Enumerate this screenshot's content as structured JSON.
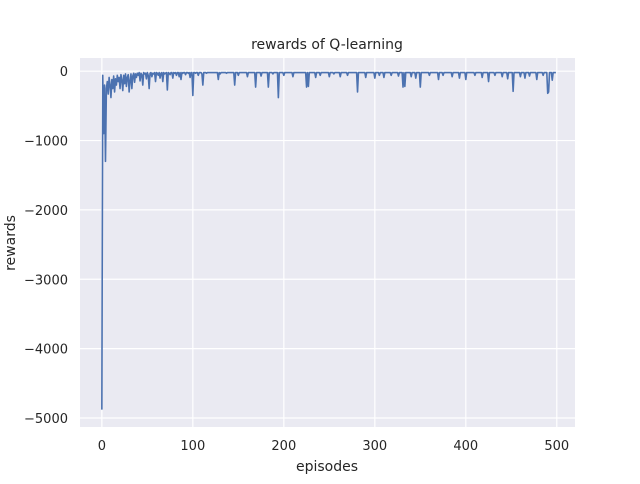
{
  "chart_data": {
    "type": "line",
    "title": "rewards of Q-learning",
    "xlabel": "episodes",
    "ylabel": "rewards",
    "xlim": [
      -24,
      520
    ],
    "ylim": [
      -5130,
      190
    ],
    "xticks": [
      0,
      100,
      200,
      300,
      400,
      500
    ],
    "yticks": [
      0,
      -1000,
      -2000,
      -3000,
      -4000,
      -5000
    ],
    "xtick_labels": [
      "0",
      "100",
      "200",
      "300",
      "400",
      "500"
    ],
    "ytick_labels": [
      "0",
      "−1000",
      "−2000",
      "−3000",
      "−4000",
      "−5000"
    ],
    "grid": true,
    "style": {
      "background": "#eaeaf2",
      "grid_color": "#ffffff",
      "line_color": "#4c72b0"
    },
    "series": [
      {
        "values": [
          -4880,
          -60,
          -900,
          -200,
          -1300,
          -250,
          -150,
          -330,
          -90,
          -200,
          -380,
          -120,
          -250,
          -70,
          -300,
          -110,
          -200,
          -60,
          -150,
          -90,
          -250,
          -50,
          -130,
          -280,
          -60,
          -180,
          -40,
          -220,
          -90,
          -50,
          -300,
          -140,
          -40,
          -250,
          -70,
          -30,
          -160,
          -40,
          -90,
          -30,
          -60,
          -20,
          -140,
          -30,
          -50,
          -200,
          -20,
          -40,
          -30,
          -110,
          -20,
          -60,
          -250,
          -30,
          -20,
          -80,
          -30,
          -40,
          -20,
          -150,
          -20,
          -30,
          -60,
          -20,
          -100,
          -30,
          -20,
          -150,
          -20,
          -40,
          -30,
          -20,
          -270,
          -20,
          -30,
          -50,
          -20,
          -20,
          -100,
          -20,
          -30,
          -20,
          -60,
          -20,
          -20,
          -80,
          -20,
          -120,
          -20,
          -30,
          -20,
          -20,
          -50,
          -20,
          -20,
          -30,
          -20,
          -90,
          -20,
          -20,
          -350,
          -20,
          -20,
          -30,
          -20,
          -20,
          -60,
          -20,
          -20,
          -20,
          -40,
          -200,
          -20,
          -20,
          -20,
          -30,
          -20,
          -20,
          -20,
          -20,
          -20,
          -20,
          -20,
          -20,
          -20,
          -20,
          -20,
          -20,
          -120,
          -20,
          -40,
          -20,
          -20,
          -20,
          -20,
          -20,
          -20,
          -30,
          -20,
          -20,
          -20,
          -20,
          -20,
          -20,
          -20,
          -20,
          -200,
          -20,
          -20,
          -20,
          -60,
          -20,
          -20,
          -20,
          -20,
          -20,
          -20,
          -20,
          -20,
          -20,
          -80,
          -20,
          -20,
          -20,
          -20,
          -20,
          -20,
          -20,
          -20,
          -230,
          -20,
          -20,
          -20,
          -20,
          -20,
          -70,
          -20,
          -20,
          -20,
          -20,
          -20,
          -20,
          -20,
          -230,
          -20,
          -20,
          -20,
          -20,
          -40,
          -20,
          -20,
          -20,
          -20,
          -20,
          -380,
          -20,
          -20,
          -20,
          -20,
          -20,
          -60,
          -20,
          -20,
          -20,
          -20,
          -20,
          -20,
          -20,
          -20,
          -20,
          -80,
          -20,
          -20,
          -20,
          -20,
          -20,
          -20,
          -20,
          -20,
          -20,
          -20,
          -20,
          -20,
          -20,
          -20,
          -230,
          -20,
          -220,
          -20,
          -20,
          -20,
          -20,
          -20,
          -20,
          -20,
          -90,
          -20,
          -20,
          -20,
          -20,
          -60,
          -20,
          -20,
          -20,
          -20,
          -20,
          -20,
          -20,
          -20,
          -20,
          -80,
          -20,
          -20,
          -20,
          -20,
          -40,
          -20,
          -20,
          -20,
          -20,
          -20,
          -20,
          -80,
          -20,
          -20,
          -20,
          -20,
          -20,
          -20,
          -20,
          -60,
          -20,
          -20,
          -20,
          -20,
          -20,
          -20,
          -20,
          -20,
          -20,
          -20,
          -300,
          -20,
          -20,
          -20,
          -20,
          -20,
          -20,
          -20,
          -20,
          -90,
          -20,
          -20,
          -20,
          -20,
          -20,
          -20,
          -20,
          -20,
          -20,
          -100,
          -20,
          -20,
          -20,
          -20,
          -60,
          -20,
          -20,
          -20,
          -20,
          -90,
          -20,
          -20,
          -20,
          -20,
          -20,
          -20,
          -20,
          -60,
          -20,
          -20,
          -20,
          -20,
          -20,
          -20,
          -20,
          -70,
          -20,
          -20,
          -20,
          -20,
          -230,
          -20,
          -220,
          -20,
          -20,
          -20,
          -20,
          -20,
          -20,
          -80,
          -20,
          -20,
          -20,
          -20,
          -100,
          -20,
          -20,
          -20,
          -20,
          -230,
          -20,
          -20,
          -20,
          -20,
          -20,
          -20,
          -20,
          -20,
          -20,
          -60,
          -20,
          -20,
          -20,
          -20,
          -20,
          -20,
          -20,
          -20,
          -20,
          -120,
          -20,
          -20,
          -20,
          -20,
          -60,
          -20,
          -20,
          -20,
          -20,
          -20,
          -20,
          -20,
          -20,
          -20,
          -80,
          -20,
          -20,
          -20,
          -20,
          -20,
          -20,
          -20,
          -100,
          -20,
          -20,
          -20,
          -20,
          -20,
          -20,
          -120,
          -20,
          -20,
          -20,
          -20,
          -20,
          -20,
          -20,
          -20,
          -20,
          -60,
          -20,
          -20,
          -20,
          -20,
          -20,
          -20,
          -20,
          -90,
          -20,
          -20,
          -20,
          -20,
          -20,
          -20,
          -150,
          -20,
          -20,
          -20,
          -20,
          -20,
          -20,
          -60,
          -20,
          -20,
          -20,
          -20,
          -20,
          -20,
          -20,
          -80,
          -20,
          -20,
          -20,
          -20,
          -20,
          -110,
          -20,
          -20,
          -20,
          -20,
          -20,
          -290,
          -20,
          -20,
          -20,
          -20,
          -20,
          -20,
          -20,
          -80,
          -20,
          -20,
          -20,
          -20,
          -100,
          -20,
          -20,
          -20,
          -20,
          -70,
          -20,
          -20,
          -20,
          -20,
          -20,
          -20,
          -20,
          -120,
          -20,
          -20,
          -20,
          -20,
          -20,
          -20,
          -60,
          -20,
          -20,
          -20,
          -20,
          -320,
          -300,
          -20,
          -20,
          -20,
          -130,
          -20,
          -20,
          -20,
          -20
        ]
      }
    ]
  }
}
